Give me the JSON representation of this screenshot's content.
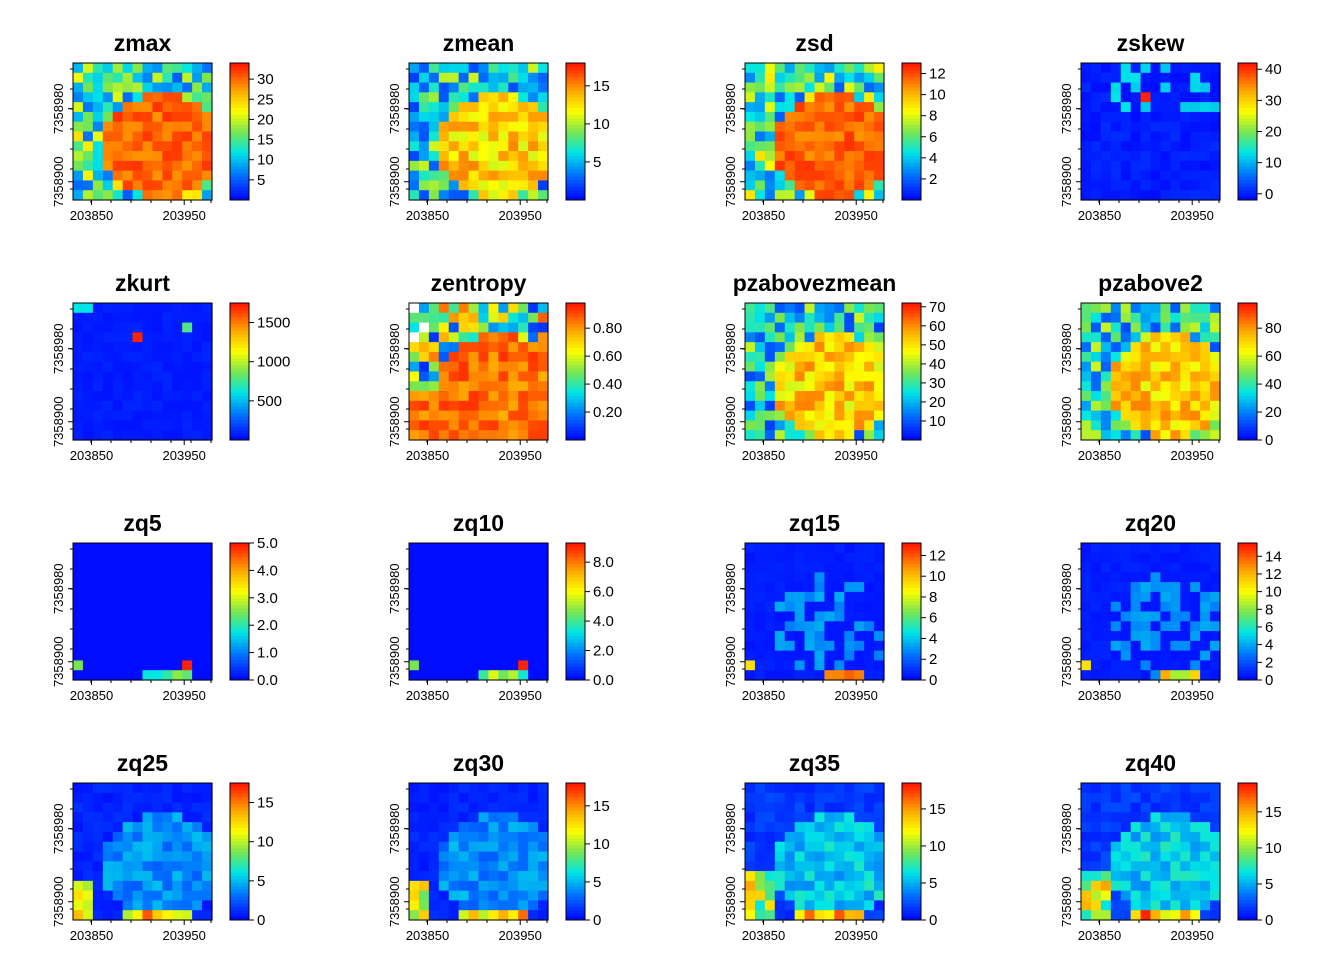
{
  "chart_data": [
    {
      "type": "heatmap",
      "title": "zmax",
      "pattern": "blob",
      "legend_ticks": [
        5,
        10,
        15,
        20,
        25,
        30
      ],
      "ylim": [
        0,
        34
      ],
      "x_ticks": [
        "203850",
        "203950"
      ],
      "y_ticks": [
        "7358900",
        "7358980"
      ],
      "x_range": [
        203830,
        203980
      ],
      "y_range": [
        7358880,
        7359030
      ]
    },
    {
      "type": "heatmap",
      "title": "zmean",
      "pattern": "blob_mid",
      "legend_ticks": [
        5,
        10,
        15
      ],
      "ylim": [
        0,
        18
      ],
      "x_ticks": [
        "203850",
        "203950"
      ],
      "y_ticks": [
        "7358900",
        "7358980"
      ],
      "x_range": [
        203830,
        203980
      ],
      "y_range": [
        7358880,
        7359030
      ]
    },
    {
      "type": "heatmap",
      "title": "zsd",
      "pattern": "blob",
      "legend_ticks": [
        2,
        4,
        6,
        8,
        10,
        12
      ],
      "ylim": [
        0,
        13
      ],
      "x_ticks": [
        "203850",
        "203950"
      ],
      "y_ticks": [
        "7358900",
        "7358980"
      ],
      "x_range": [
        203830,
        203980
      ],
      "y_range": [
        7358880,
        7359030
      ]
    },
    {
      "type": "heatmap",
      "title": "zskew",
      "pattern": "skew",
      "legend_ticks": [
        0,
        10,
        20,
        30,
        40
      ],
      "ylim": [
        -2,
        42
      ],
      "x_ticks": [
        "203850",
        "203950"
      ],
      "y_ticks": [
        "7358900",
        "7358980"
      ],
      "x_range": [
        203830,
        203980
      ],
      "y_range": [
        7358880,
        7359030
      ]
    },
    {
      "type": "heatmap",
      "title": "zkurt",
      "pattern": "kurt",
      "legend_ticks": [
        500,
        1000,
        1500
      ],
      "ylim": [
        0,
        1750
      ],
      "x_ticks": [
        "203850",
        "203950"
      ],
      "y_ticks": [
        "7358900",
        "7358980"
      ],
      "x_range": [
        203830,
        203980
      ],
      "y_range": [
        7358880,
        7359030
      ]
    },
    {
      "type": "heatmap",
      "title": "zentropy",
      "pattern": "entropy",
      "legend_ticks": [
        "0.20",
        "0.40",
        "0.60",
        "0.80"
      ],
      "ylim": [
        0,
        0.98
      ],
      "x_ticks": [
        "203850",
        "203950"
      ],
      "y_ticks": [
        "7358900",
        "7358980"
      ],
      "x_range": [
        203830,
        203980
      ],
      "y_range": [
        7358880,
        7359030
      ]
    },
    {
      "type": "heatmap",
      "title": "pzabovezmean",
      "pattern": "blob_mid",
      "legend_ticks": [
        10,
        20,
        30,
        40,
        50,
        60,
        70
      ],
      "ylim": [
        0,
        72
      ],
      "x_ticks": [
        "203850",
        "203950"
      ],
      "y_ticks": [
        "7358900",
        "7358980"
      ],
      "x_range": [
        203830,
        203980
      ],
      "y_range": [
        7358880,
        7359030
      ]
    },
    {
      "type": "heatmap",
      "title": "pzabove2",
      "pattern": "blob_mid",
      "legend_ticks": [
        0,
        20,
        40,
        60,
        80
      ],
      "ylim": [
        0,
        98
      ],
      "x_ticks": [
        "203850",
        "203950"
      ],
      "y_ticks": [
        "7358900",
        "7358980"
      ],
      "x_range": [
        203830,
        203980
      ],
      "y_range": [
        7358880,
        7359030
      ]
    },
    {
      "type": "heatmap",
      "title": "zq5",
      "pattern": "low",
      "legend_ticks": [
        "0.0",
        "1.0",
        "2.0",
        "3.0",
        "4.0",
        "5.0"
      ],
      "ylim": [
        0,
        5
      ],
      "x_ticks": [
        "203850",
        "203950"
      ],
      "y_ticks": [
        "7358900",
        "7358980"
      ],
      "x_range": [
        203830,
        203980
      ],
      "y_range": [
        7358880,
        7359030
      ]
    },
    {
      "type": "heatmap",
      "title": "zq10",
      "pattern": "low",
      "legend_ticks": [
        "0.0",
        "2.0",
        "4.0",
        "6.0",
        "8.0"
      ],
      "ylim": [
        0,
        9.3
      ],
      "x_ticks": [
        "203850",
        "203950"
      ],
      "y_ticks": [
        "7358900",
        "7358980"
      ],
      "x_range": [
        203830,
        203980
      ],
      "y_range": [
        7358880,
        7359030
      ]
    },
    {
      "type": "heatmap",
      "title": "zq15",
      "pattern": "q_low",
      "legend_ticks": [
        0,
        2,
        4,
        6,
        8,
        10,
        12
      ],
      "ylim": [
        0,
        13.2
      ],
      "x_ticks": [
        "203850",
        "203950"
      ],
      "y_ticks": [
        "7358900",
        "7358980"
      ],
      "x_range": [
        203830,
        203980
      ],
      "y_range": [
        7358880,
        7359030
      ]
    },
    {
      "type": "heatmap",
      "title": "zq20",
      "pattern": "q_low",
      "legend_ticks": [
        0,
        2,
        4,
        6,
        8,
        10,
        12,
        14
      ],
      "ylim": [
        0,
        15.5
      ],
      "x_ticks": [
        "203850",
        "203950"
      ],
      "y_ticks": [
        "7358900",
        "7358980"
      ],
      "x_range": [
        203830,
        203980
      ],
      "y_range": [
        7358880,
        7359030
      ]
    },
    {
      "type": "heatmap",
      "title": "zq25",
      "pattern": "q_mid",
      "legend_ticks": [
        0,
        5,
        10,
        15
      ],
      "ylim": [
        0,
        17.5
      ],
      "x_ticks": [
        "203850",
        "203950"
      ],
      "y_ticks": [
        "7358900",
        "7358980"
      ],
      "x_range": [
        203830,
        203980
      ],
      "y_range": [
        7358880,
        7359030
      ]
    },
    {
      "type": "heatmap",
      "title": "zq30",
      "pattern": "q_mid",
      "legend_ticks": [
        0,
        5,
        10,
        15
      ],
      "ylim": [
        0,
        18
      ],
      "x_ticks": [
        "203850",
        "203950"
      ],
      "y_ticks": [
        "7358900",
        "7358980"
      ],
      "x_range": [
        203830,
        203980
      ],
      "y_range": [
        7358880,
        7359030
      ]
    },
    {
      "type": "heatmap",
      "title": "zq35",
      "pattern": "q_high",
      "legend_ticks": [
        0,
        5,
        10,
        15
      ],
      "ylim": [
        0,
        18.5
      ],
      "x_ticks": [
        "203850",
        "203950"
      ],
      "y_ticks": [
        "7358900",
        "7358980"
      ],
      "x_range": [
        203830,
        203980
      ],
      "y_range": [
        7358880,
        7359030
      ]
    },
    {
      "type": "heatmap",
      "title": "zq40",
      "pattern": "q_high",
      "legend_ticks": [
        0,
        5,
        10,
        15
      ],
      "ylim": [
        0,
        19
      ],
      "x_ticks": [
        "203850",
        "203950"
      ],
      "y_ticks": [
        "7358900",
        "7358980"
      ],
      "x_range": [
        203830,
        203980
      ],
      "y_range": [
        7358880,
        7359030
      ]
    }
  ]
}
